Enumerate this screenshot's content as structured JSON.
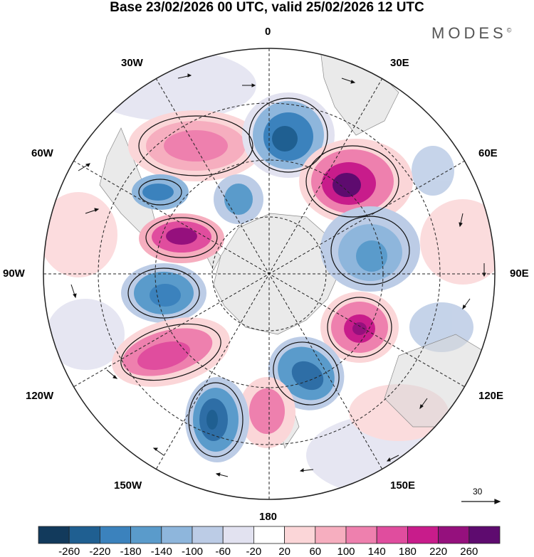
{
  "title": "Base 23/02/2026 00 UTC, valid 25/02/2026 12 UTC",
  "brand": "MODES",
  "brand_mark": "©",
  "longitude_labels": {
    "lon_0": "0",
    "lon_30e": "30E",
    "lon_60e": "60E",
    "lon_90e": "90E",
    "lon_120e": "120E",
    "lon_150e": "150E",
    "lon_180": "180",
    "lon_150w": "150W",
    "lon_120w": "120W",
    "lon_90w": "90W",
    "lon_60w": "60W",
    "lon_30w": "30W"
  },
  "vector_scale": {
    "label": "30"
  },
  "colorbar": {
    "colors": [
      "#123a5c",
      "#1f5f91",
      "#3b82bd",
      "#5a9bcb",
      "#8eb6dc",
      "#bccce6",
      "#e2e2f0",
      "#ffffff",
      "#fbd6d8",
      "#f6aebf",
      "#ee80ae",
      "#e04d9e",
      "#c81c8b",
      "#95107d",
      "#5e0b6f"
    ],
    "labels": [
      "-260",
      "-220",
      "-180",
      "-140",
      "-100",
      "-60",
      "-20",
      "20",
      "60",
      "100",
      "140",
      "180",
      "220",
      "260"
    ]
  },
  "anomaly_colors": {
    "neg_strong": "#2e6ea6",
    "neg_mid": "#5a9bcb",
    "neg_light": "#bccce6",
    "neg_faint": "#e2e2f0",
    "pos_faint": "#fbd6d8",
    "pos_light": "#f6aebf",
    "pos_mid": "#ee80ae",
    "pos_strong": "#c81c8b",
    "pos_max": "#5e0b6f",
    "land_grey": "#d9d9d9"
  }
}
